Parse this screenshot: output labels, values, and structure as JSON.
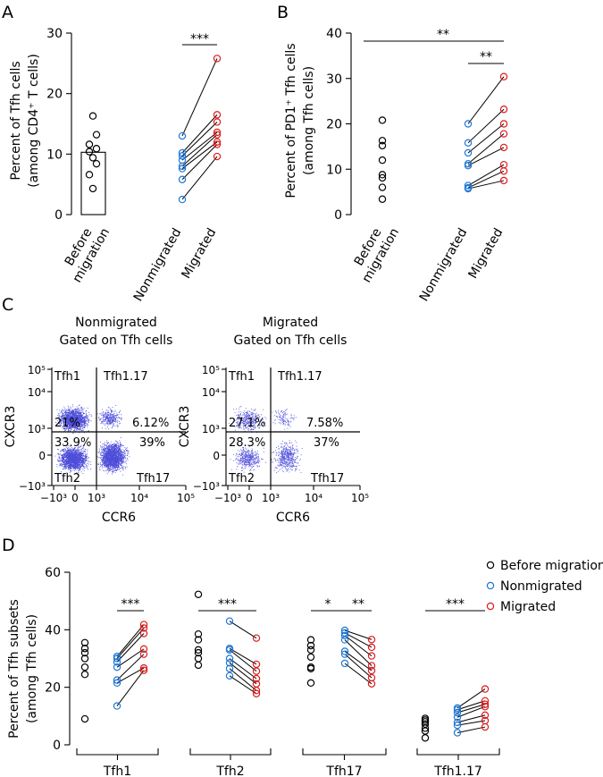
{
  "colors": {
    "before": "#000000",
    "nonmigrated": "#1f77d4",
    "migrated": "#e01b1b",
    "flow": "#2020d0"
  },
  "panels": {
    "A": "A",
    "B": "B",
    "C": "C",
    "D": "D"
  },
  "chart_data": [
    {
      "id": "A",
      "type": "scatter",
      "ylabel_line1": "Percent of Tfh cells",
      "ylabel_line2": "(among CD4⁺ T cells)",
      "ylim": [
        0,
        30
      ],
      "yticks": [
        "0",
        "10",
        "20",
        "30"
      ],
      "categories": [
        "Before\nmigration",
        "Nonmigrated",
        "Migrated"
      ],
      "bar_before": 10.3,
      "before": [
        16.3,
        13.2,
        11.6,
        10.9,
        10.4,
        9.4,
        8.4,
        6.6,
        4.3
      ],
      "pairs": [
        [
          13.0,
          25.8
        ],
        [
          10.2,
          16.5
        ],
        [
          9.7,
          15.3
        ],
        [
          9.0,
          13.6
        ],
        [
          8.0,
          13.2
        ],
        [
          7.6,
          12.0
        ],
        [
          5.8,
          11.6
        ],
        [
          2.5,
          9.6
        ]
      ],
      "significance": [
        {
          "label": "***",
          "from": 1,
          "to": 2
        }
      ]
    },
    {
      "id": "B",
      "type": "scatter",
      "ylabel_line1": "Percent of PD1⁺ Tfh cells",
      "ylabel_line2": "(among Tfh cells)",
      "ylim": [
        0,
        40
      ],
      "yticks": [
        "0",
        "10",
        "20",
        "30",
        "40"
      ],
      "categories": [
        "Before\nmigration",
        "Nonmigrated",
        "Migrated"
      ],
      "before": [
        20.8,
        16.3,
        15.2,
        12.0,
        8.8,
        8.1,
        6.0,
        3.4
      ],
      "pairs": [
        [
          20.0,
          30.4
        ],
        [
          15.8,
          23.2
        ],
        [
          13.6,
          20.0
        ],
        [
          11.2,
          17.8
        ],
        [
          10.8,
          14.8
        ],
        [
          6.4,
          11.0
        ],
        [
          5.9,
          9.6
        ],
        [
          5.7,
          7.5
        ]
      ],
      "significance": [
        {
          "label": "**",
          "from": 0,
          "to": 2
        },
        {
          "label": "**",
          "from": 1,
          "to": 2
        }
      ]
    },
    {
      "id": "C-nonmigrated",
      "type": "scatter",
      "title_line1": "Nonmigrated",
      "title_line2": "Gated on Tfh cells",
      "xlabel": "CCR6",
      "ylabel": "CXCR3",
      "yticks": [
        "10⁵",
        "10⁴",
        "10³",
        "0",
        "−10³"
      ],
      "xticks": [
        "−10³",
        "0",
        "10³",
        "10⁴",
        "10⁵"
      ],
      "quadrant_names": {
        "tl": "Tfh1",
        "tr": "Tfh1.17",
        "bl": "Tfh2",
        "br": "Tfh17"
      },
      "quadrant_percents": {
        "tl": "21%",
        "tr": "6.12%",
        "bl": "33.9%",
        "br": "39%"
      }
    },
    {
      "id": "C-migrated",
      "type": "scatter",
      "title_line1": "Migrated",
      "title_line2": "Gated on Tfh cells",
      "xlabel": "CCR6",
      "ylabel": "CXCR3",
      "yticks": [
        "10⁵",
        "10⁴",
        "10³",
        "0",
        "−10³"
      ],
      "xticks": [
        "−10³",
        "0",
        "10³",
        "10⁴",
        "10⁵"
      ],
      "quadrant_names": {
        "tl": "Tfh1",
        "tr": "Tfh1.17",
        "bl": "Tfh2",
        "br": "Tfh17"
      },
      "quadrant_percents": {
        "tl": "27.1%",
        "tr": "7.58%",
        "bl": "28.3%",
        "br": "37%"
      }
    },
    {
      "id": "D",
      "type": "scatter",
      "ylabel_line1": "Percent of Tfh subsets",
      "ylabel_line2": "(among Tfh cells)",
      "ylim": [
        0,
        60
      ],
      "yticks": [
        "0",
        "20",
        "40",
        "60"
      ],
      "legend": [
        "Before migration",
        "Nonmigrated",
        "Migrated"
      ],
      "groups": [
        {
          "name": "Tfh1",
          "before": [
            35.5,
            33.5,
            32.0,
            30.0,
            27.0,
            24.5,
            9.0
          ],
          "pairs": [
            [
              30.7,
              41.8
            ],
            [
              30.0,
              40.6
            ],
            [
              28.8,
              38.7
            ],
            [
              27.0,
              33.3
            ],
            [
              22.5,
              31.5
            ],
            [
              21.5,
              26.7
            ],
            [
              13.5,
              25.9
            ]
          ],
          "significance": [
            {
              "label": "***",
              "from": 1,
              "to": 2
            }
          ]
        },
        {
          "name": "Tfh2",
          "before": [
            52.3,
            38.5,
            36.5,
            33.0,
            32.0,
            30.0,
            27.7
          ],
          "pairs": [
            [
              43.0,
              37.1
            ],
            [
              33.5,
              28.0
            ],
            [
              33.0,
              25.6
            ],
            [
              30.0,
              23.0
            ],
            [
              28.5,
              21.2
            ],
            [
              26.5,
              18.9
            ],
            [
              24.0,
              17.8
            ]
          ],
          "significance": [
            {
              "label": "***",
              "from": 0,
              "to": 2
            }
          ]
        },
        {
          "name": "Tfh17",
          "before": [
            36.5,
            34.5,
            33.0,
            30.5,
            27.0,
            26.5,
            21.5
          ],
          "pairs": [
            [
              39.8,
              36.6
            ],
            [
              38.9,
              33.9
            ],
            [
              38.0,
              30.9
            ],
            [
              36.5,
              27.5
            ],
            [
              32.5,
              25.8
            ],
            [
              31.5,
              23.3
            ],
            [
              28.3,
              21.2
            ]
          ],
          "significance": [
            {
              "label": "*",
              "from": 0,
              "to": 1
            },
            {
              "label": "**",
              "from": 1,
              "to": 2
            }
          ]
        },
        {
          "name": "Tfh1.17",
          "before": [
            9.2,
            8.6,
            8.0,
            7.2,
            5.8,
            4.8,
            2.4
          ],
          "pairs": [
            [
              12.8,
              19.4
            ],
            [
              12.2,
              15.3
            ],
            [
              11.2,
              14.1
            ],
            [
              9.6,
              13.3
            ],
            [
              7.8,
              10.3
            ],
            [
              6.8,
              8.4
            ],
            [
              4.2,
              6.2
            ]
          ],
          "significance": [
            {
              "label": "***",
              "from": 0,
              "to": 2
            }
          ]
        }
      ]
    }
  ]
}
